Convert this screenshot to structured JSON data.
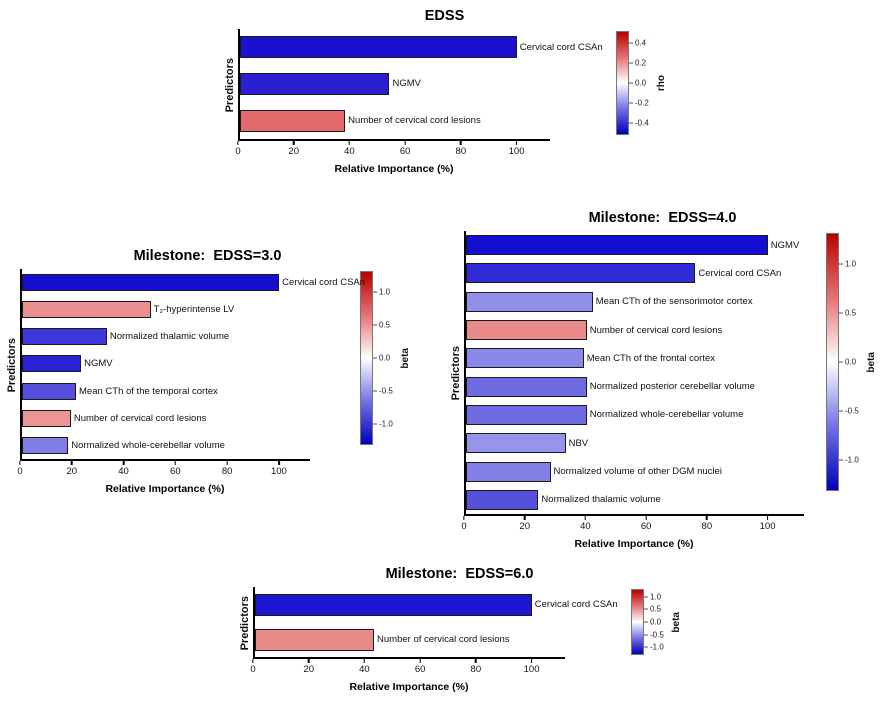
{
  "colors": {
    "colorbar_top": "#b80000",
    "colorbar_upper": "#e57373",
    "colorbar_mid": "#ffffff",
    "colorbar_lower": "#7373e5",
    "colorbar_bottom": "#0000b8",
    "axis": "#000000",
    "background": "#ffffff"
  },
  "chart_data": [
    {
      "id": "edss",
      "type": "bar",
      "orientation": "horizontal",
      "title": "EDSS",
      "xlabel": "Relative Importance (%)",
      "ylabel": "Predictors",
      "x_ticks": [
        0,
        20,
        40,
        60,
        80,
        100
      ],
      "x_axis_max": 112,
      "grid": false,
      "legend_position": "right-colorbar",
      "colorbar": {
        "label": "rho",
        "ticks": [
          "0.4",
          "0.2",
          "0.0",
          "-0.2",
          "-0.4"
        ]
      },
      "bars": [
        {
          "label": "Cervical cord CSAn",
          "value": 100,
          "color": "#1c10d0"
        },
        {
          "label": "NGMV",
          "value": 54,
          "color": "#2a20d2"
        },
        {
          "label": "Number of cervical cord lesions",
          "value": 38,
          "color": "#e4696d"
        }
      ]
    },
    {
      "id": "edss3",
      "type": "bar",
      "orientation": "horizontal",
      "title": "Milestone:  EDSS=3.0",
      "xlabel": "Relative Importance (%)",
      "ylabel": "Predictors",
      "x_ticks": [
        0,
        20,
        40,
        60,
        80,
        100
      ],
      "x_axis_max": 112,
      "grid": false,
      "legend_position": "right-colorbar",
      "colorbar": {
        "label": "beta",
        "ticks": [
          "1.0",
          "0.5",
          "0.0",
          "-0.5",
          "-1.0"
        ]
      },
      "bars": [
        {
          "label": "Cervical cord CSAn",
          "value": 100,
          "color": "#150ed0"
        },
        {
          "label": "T₂-hyperintense LV",
          "value": 50,
          "color": "#e98f8f"
        },
        {
          "label": "Normalized thalamic volume",
          "value": 33,
          "color": "#3e38d8"
        },
        {
          "label": "NGMV",
          "value": 23,
          "color": "#2a22d3"
        },
        {
          "label": "Mean CTh of the temporal cortex",
          "value": 21,
          "color": "#5550dc"
        },
        {
          "label": "Number of cervical cord lesions",
          "value": 19,
          "color": "#ec9595"
        },
        {
          "label": "Normalized whole-cerebellar volume",
          "value": 18,
          "color": "#7f7de6"
        }
      ]
    },
    {
      "id": "edss4",
      "type": "bar",
      "orientation": "horizontal",
      "title": "Milestone:  EDSS=4.0",
      "xlabel": "Relative Importance (%)",
      "ylabel": "Predictors",
      "x_ticks": [
        0,
        20,
        40,
        60,
        80,
        100
      ],
      "x_axis_max": 112,
      "grid": false,
      "legend_position": "right-colorbar",
      "colorbar": {
        "label": "beta",
        "ticks": [
          "1.0",
          "0.5",
          "0.0",
          "-0.5",
          "-1.0"
        ]
      },
      "bars": [
        {
          "label": "NGMV",
          "value": 100,
          "color": "#140ed0"
        },
        {
          "label": "Cervical cord CSAn",
          "value": 76,
          "color": "#2f2ad4"
        },
        {
          "label": "Mean CTh of the sensorimotor cortex",
          "value": 42,
          "color": "#918fe9"
        },
        {
          "label": "Number of cervical cord lesions",
          "value": 40,
          "color": "#e98b8b"
        },
        {
          "label": "Mean CTh of the frontal cortex",
          "value": 39,
          "color": "#8a88e8"
        },
        {
          "label": "Normalized posterior cerebellar volume",
          "value": 40,
          "color": "#6f6ce2"
        },
        {
          "label": "Normalized whole-cerebellar volume",
          "value": 40,
          "color": "#6f6ce2"
        },
        {
          "label": "NBV",
          "value": 33,
          "color": "#9694ea"
        },
        {
          "label": "Normalized volume of other DGM nuclei",
          "value": 28,
          "color": "#827fe7"
        },
        {
          "label": "Normalized thalamic volume",
          "value": 24,
          "color": "#5551dc"
        }
      ]
    },
    {
      "id": "edss6",
      "type": "bar",
      "orientation": "horizontal",
      "title": "Milestone:  EDSS=6.0",
      "xlabel": "Relative Importance (%)",
      "ylabel": "Predictors",
      "x_ticks": [
        0,
        20,
        40,
        60,
        80,
        100
      ],
      "x_axis_max": 112,
      "grid": false,
      "legend_position": "right-colorbar",
      "colorbar": {
        "label": "beta",
        "ticks": [
          "1.0",
          "0.5",
          "0.0",
          "-0.5",
          "-1.0"
        ]
      },
      "bars": [
        {
          "label": "Cervical cord CSAn",
          "value": 100,
          "color": "#1d17d1"
        },
        {
          "label": "Number of cervical cord lesions",
          "value": 43,
          "color": "#e98b8b"
        }
      ]
    }
  ]
}
